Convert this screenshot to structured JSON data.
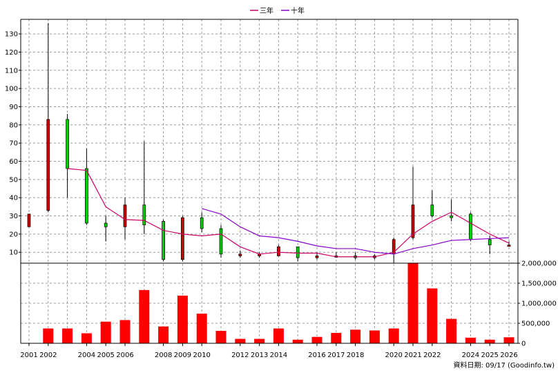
{
  "legend": {
    "ma3_label": "三年",
    "ma10_label": "十年"
  },
  "source_note": "資料日期: 09/17  (Goodinfo.tw)",
  "colors": {
    "up": "#cc0000",
    "down": "#00cc00",
    "ma3": "#cc0066",
    "ma10": "#8800cc",
    "volume": "#ff0000"
  },
  "chart_data": {
    "type": "candlestick+bar",
    "x_labels": [
      "2001",
      "2002",
      "2004",
      "2005",
      "2006",
      "2008",
      "2009",
      "2010",
      "2012",
      "2013",
      "2014",
      "2016",
      "2017",
      "2018",
      "2020",
      "2021",
      "2022",
      "2024",
      "2025",
      "2026"
    ],
    "price_axis": {
      "ylim": [
        4,
        138
      ],
      "ticks": [
        10,
        20,
        30,
        40,
        50,
        60,
        70,
        80,
        90,
        100,
        110,
        120,
        130
      ],
      "grid": true
    },
    "volume_axis": {
      "ylim": [
        0,
        2000000
      ],
      "ticks": [
        "0",
        "500,000",
        "1,000,000",
        "1,500,000",
        "2,000,000"
      ],
      "tick_values": [
        0,
        500000,
        1000000,
        1500000,
        2000000
      ],
      "grid": true
    },
    "candles": [
      {
        "year": "2001",
        "open": 24,
        "high": 31,
        "low": 24,
        "close": 31
      },
      {
        "year": "2002",
        "open": 33,
        "high": 136,
        "low": 32,
        "close": 83
      },
      {
        "year": "2003",
        "open": 83,
        "high": 86,
        "low": 40,
        "close": 56
      },
      {
        "year": "2004",
        "open": 56,
        "high": 67,
        "low": 25,
        "close": 26
      },
      {
        "year": "2005",
        "open": 26,
        "high": 30,
        "low": 16,
        "close": 24
      },
      {
        "year": "2006",
        "open": 24,
        "high": 40,
        "low": 17,
        "close": 36
      },
      {
        "year": "2007",
        "open": 36,
        "high": 71,
        "low": 20,
        "close": 25
      },
      {
        "year": "2008",
        "open": 27,
        "high": 28,
        "low": 5,
        "close": 6
      },
      {
        "year": "2009",
        "open": 6,
        "high": 30,
        "low": 5,
        "close": 29
      },
      {
        "year": "2010",
        "open": 29,
        "high": 32,
        "low": 21,
        "close": 23
      },
      {
        "year": "2011",
        "open": 23,
        "high": 25,
        "low": 7,
        "close": 9
      },
      {
        "year": "2012",
        "open": 8,
        "high": 11,
        "low": 7,
        "close": 9
      },
      {
        "year": "2013",
        "open": 8,
        "high": 10,
        "low": 7,
        "close": 9
      },
      {
        "year": "2014",
        "open": 8,
        "high": 14,
        "low": 8,
        "close": 13
      },
      {
        "year": "2015",
        "open": 13,
        "high": 13,
        "low": 5,
        "close": 7
      },
      {
        "year": "2016",
        "open": 7,
        "high": 10,
        "low": 6,
        "close": 8
      },
      {
        "year": "2017",
        "open": 8,
        "high": 10,
        "low": 7,
        "close": 8
      },
      {
        "year": "2018",
        "open": 8,
        "high": 10,
        "low": 6,
        "close": 7
      },
      {
        "year": "2019",
        "open": 7,
        "high": 9,
        "low": 6,
        "close": 8
      },
      {
        "year": "2020",
        "open": 9,
        "high": 18,
        "low": 4,
        "close": 17
      },
      {
        "year": "2021",
        "open": 18,
        "high": 57,
        "low": 17,
        "close": 36
      },
      {
        "year": "2022",
        "open": 36,
        "high": 44,
        "low": 29,
        "close": 30
      },
      {
        "year": "2023",
        "open": 30,
        "high": 39,
        "low": 27,
        "close": 29
      },
      {
        "year": "2024",
        "open": 31,
        "high": 32,
        "low": 16,
        "close": 17
      },
      {
        "year": "2025",
        "open": 17,
        "high": 19,
        "low": 9,
        "close": 14
      },
      {
        "year": "2026",
        "open": 14,
        "high": 16,
        "low": 13,
        "close": 14
      }
    ],
    "ma3": [
      {
        "year": "2003",
        "value": 56
      },
      {
        "year": "2004",
        "value": 55
      },
      {
        "year": "2005",
        "value": 35
      },
      {
        "year": "2006",
        "value": 28
      },
      {
        "year": "2007",
        "value": 27.5
      },
      {
        "year": "2008",
        "value": 22
      },
      {
        "year": "2009",
        "value": 20
      },
      {
        "year": "2010",
        "value": 19
      },
      {
        "year": "2011",
        "value": 20
      },
      {
        "year": "2012",
        "value": 13
      },
      {
        "year": "2013",
        "value": 9
      },
      {
        "year": "2014",
        "value": 10
      },
      {
        "year": "2015",
        "value": 9.5
      },
      {
        "year": "2016",
        "value": 9.5
      },
      {
        "year": "2017",
        "value": 7.5
      },
      {
        "year": "2018",
        "value": 7.5
      },
      {
        "year": "2019",
        "value": 7.5
      },
      {
        "year": "2020",
        "value": 10
      },
      {
        "year": "2021",
        "value": 20
      },
      {
        "year": "2022",
        "value": 27
      },
      {
        "year": "2023",
        "value": 32
      },
      {
        "year": "2024",
        "value": 26
      },
      {
        "year": "2025",
        "value": 20
      },
      {
        "year": "2026",
        "value": 15
      }
    ],
    "ma10": [
      {
        "year": "2010",
        "value": 34
      },
      {
        "year": "2011",
        "value": 31
      },
      {
        "year": "2012",
        "value": 24
      },
      {
        "year": "2013",
        "value": 19
      },
      {
        "year": "2014",
        "value": 18
      },
      {
        "year": "2015",
        "value": 16
      },
      {
        "year": "2016",
        "value": 13.5
      },
      {
        "year": "2017",
        "value": 12
      },
      {
        "year": "2018",
        "value": 12
      },
      {
        "year": "2019",
        "value": 10
      },
      {
        "year": "2020",
        "value": 9
      },
      {
        "year": "2021",
        "value": 12
      },
      {
        "year": "2022",
        "value": 14
      },
      {
        "year": "2023",
        "value": 16.5
      },
      {
        "year": "2024",
        "value": 17
      },
      {
        "year": "2025",
        "value": 17.5
      },
      {
        "year": "2026",
        "value": 18
      }
    ],
    "volume": [
      {
        "year": "2001",
        "value": 0
      },
      {
        "year": "2002",
        "value": 370000
      },
      {
        "year": "2003",
        "value": 370000
      },
      {
        "year": "2004",
        "value": 250000
      },
      {
        "year": "2005",
        "value": 540000
      },
      {
        "year": "2006",
        "value": 580000
      },
      {
        "year": "2007",
        "value": 1330000
      },
      {
        "year": "2008",
        "value": 420000
      },
      {
        "year": "2009",
        "value": 1190000
      },
      {
        "year": "2010",
        "value": 740000
      },
      {
        "year": "2011",
        "value": 310000
      },
      {
        "year": "2012",
        "value": 110000
      },
      {
        "year": "2013",
        "value": 110000
      },
      {
        "year": "2014",
        "value": 370000
      },
      {
        "year": "2015",
        "value": 90000
      },
      {
        "year": "2016",
        "value": 160000
      },
      {
        "year": "2017",
        "value": 260000
      },
      {
        "year": "2018",
        "value": 340000
      },
      {
        "year": "2019",
        "value": 320000
      },
      {
        "year": "2020",
        "value": 370000
      },
      {
        "year": "2021",
        "value": 2010000
      },
      {
        "year": "2022",
        "value": 1370000
      },
      {
        "year": "2023",
        "value": 610000
      },
      {
        "year": "2024",
        "value": 140000
      },
      {
        "year": "2025",
        "value": 90000
      },
      {
        "year": "2026",
        "value": 150000
      }
    ]
  }
}
